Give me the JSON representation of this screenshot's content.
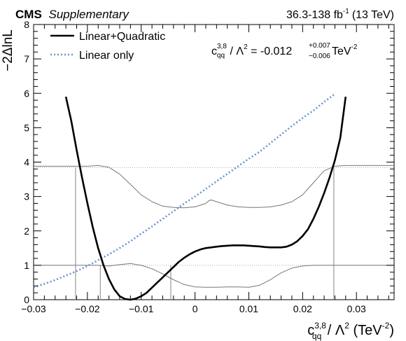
{
  "header": {
    "experiment": "CMS",
    "qualifier": "Supplementary",
    "luminosity": "36.3-138 fb",
    "lumi_exp": "-1",
    "energy": "(13 TeV)"
  },
  "result": {
    "prefix": "c",
    "sup": "3,8",
    "sub": "qq",
    "mid": " / Λ",
    "mid_sup": "2",
    "value": " = -0.012",
    "err_up": "+0.007",
    "err_down": "−0.006",
    "unit": " TeV",
    "unit_exp": "-2"
  },
  "chart_data": {
    "type": "line",
    "xlabel": {
      "base": "c",
      "sup": "3,8",
      "sub": "qq",
      "mid": " / Λ",
      "mid_sup": "2",
      "unit": " (TeV",
      "unit_exp": "-2",
      "close": ")"
    },
    "ylabel": "−2ΔlnL",
    "xlim": [
      -0.03,
      0.037
    ],
    "ylim": [
      0,
      8
    ],
    "xticks": [
      -0.03,
      -0.02,
      -0.01,
      0,
      0.01,
      0.02,
      0.03
    ],
    "xtick_labels": [
      "−0.03",
      "−0.02",
      "−0.01",
      "0",
      "0.01",
      "0.02",
      "0.03"
    ],
    "yticks": [
      0,
      1,
      2,
      3,
      4,
      5,
      6,
      7,
      8
    ],
    "ytick_labels": [
      "0",
      "1",
      "2",
      "3",
      "4",
      "5",
      "6",
      "7",
      "8"
    ],
    "legend_position": "top-left",
    "thresholds": [
      1,
      3.84
    ],
    "series": [
      {
        "name": "Linear+Quadratic",
        "color": "#000000",
        "style": "solid",
        "x": [
          -0.024,
          -0.023,
          -0.022,
          -0.021,
          -0.02,
          -0.019,
          -0.018,
          -0.017,
          -0.016,
          -0.015,
          -0.014,
          -0.013,
          -0.012,
          -0.011,
          -0.01,
          -0.009,
          -0.008,
          -0.007,
          -0.006,
          -0.005,
          -0.004,
          -0.003,
          -0.002,
          -0.001,
          0,
          0.001,
          0.002,
          0.003,
          0.004,
          0.005,
          0.006,
          0.007,
          0.008,
          0.009,
          0.01,
          0.011,
          0.012,
          0.013,
          0.014,
          0.015,
          0.016,
          0.017,
          0.018,
          0.019,
          0.02,
          0.021,
          0.022,
          0.023,
          0.024,
          0.025,
          0.026,
          0.027,
          0.028
        ],
        "y": [
          5.9,
          5.2,
          4.35,
          3.55,
          2.8,
          2.1,
          1.5,
          1.0,
          0.6,
          0.3,
          0.1,
          0.02,
          0.0,
          0.03,
          0.1,
          0.2,
          0.35,
          0.5,
          0.65,
          0.8,
          0.95,
          1.1,
          1.22,
          1.32,
          1.4,
          1.46,
          1.5,
          1.52,
          1.54,
          1.56,
          1.57,
          1.58,
          1.58,
          1.58,
          1.57,
          1.56,
          1.55,
          1.53,
          1.52,
          1.52,
          1.52,
          1.54,
          1.6,
          1.7,
          1.85,
          2.05,
          2.35,
          2.7,
          3.1,
          3.55,
          4.05,
          4.7,
          5.9
        ]
      },
      {
        "name": "Linear only",
        "color": "#6b93cf",
        "style": "dotted",
        "x": [
          -0.03,
          -0.028,
          -0.026,
          -0.024,
          -0.022,
          -0.02,
          -0.018,
          -0.016,
          -0.014,
          -0.012,
          -0.01,
          -0.008,
          -0.006,
          -0.004,
          -0.002,
          0,
          0.002,
          0.004,
          0.006,
          0.008,
          0.01,
          0.012,
          0.014,
          0.016,
          0.018,
          0.02,
          0.022,
          0.024,
          0.026
        ],
        "y": [
          0.36,
          0.46,
          0.57,
          0.7,
          0.83,
          0.98,
          1.15,
          1.32,
          1.5,
          1.7,
          1.92,
          2.13,
          2.35,
          2.57,
          2.8,
          3.0,
          3.22,
          3.44,
          3.66,
          3.88,
          4.1,
          4.3,
          4.55,
          4.8,
          5.05,
          5.28,
          5.5,
          5.75,
          5.98
        ]
      },
      {
        "name": "",
        "color": "#777777",
        "style": "solid",
        "x": [
          -0.037,
          -0.02,
          -0.018,
          -0.016,
          -0.014,
          -0.012,
          -0.01,
          -0.008,
          -0.006,
          -0.004,
          -0.002,
          0,
          0.002,
          0.0025,
          0.003,
          0.004,
          0.006,
          0.008,
          0.01,
          0.012,
          0.014,
          0.016,
          0.018,
          0.02,
          0.022,
          0.024,
          0.026,
          0.028,
          0.037
        ],
        "y": [
          3.88,
          3.88,
          3.9,
          3.85,
          3.65,
          3.35,
          3.05,
          2.85,
          2.72,
          2.68,
          2.67,
          2.7,
          2.8,
          2.87,
          2.9,
          2.85,
          2.75,
          2.7,
          2.68,
          2.68,
          2.7,
          2.75,
          2.85,
          3.05,
          3.4,
          3.75,
          3.88,
          3.9,
          3.9
        ]
      },
      {
        "name": "",
        "color": "#777777",
        "style": "solid",
        "x": [
          -0.037,
          -0.02,
          -0.018,
          -0.016,
          -0.014,
          -0.012,
          -0.01,
          -0.008,
          -0.006,
          -0.004,
          -0.002,
          0,
          0.002,
          0.004,
          0.006,
          0.008,
          0.01,
          0.012,
          0.014,
          0.016,
          0.018,
          0.02,
          0.022,
          0.024,
          0.026,
          0.028,
          0.037
        ],
        "y": [
          1.0,
          1.0,
          1.0,
          0.98,
          1.02,
          1.05,
          1.0,
          0.9,
          0.75,
          0.58,
          0.44,
          0.37,
          0.36,
          0.36,
          0.37,
          0.37,
          0.36,
          0.42,
          0.58,
          0.78,
          0.92,
          0.98,
          1.0,
          1.0,
          1.0,
          1.0,
          1.0
        ]
      }
    ],
    "drop_lines_x": [
      -0.0222,
      -0.0176,
      -0.0045,
      0.0258
    ]
  }
}
